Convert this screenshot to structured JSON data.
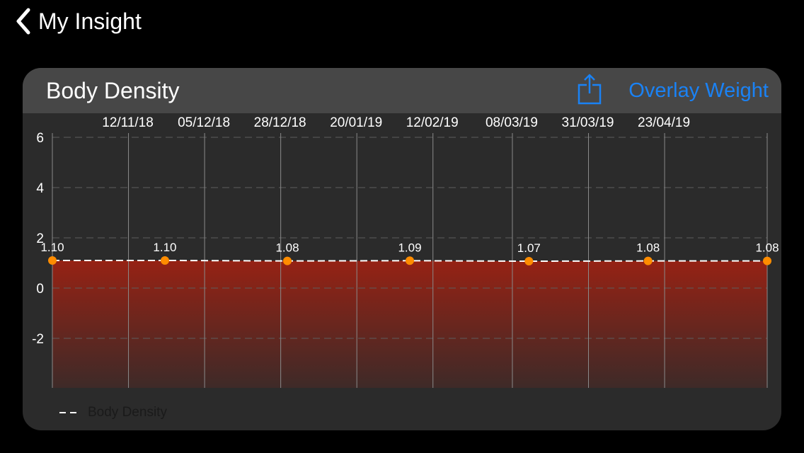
{
  "nav": {
    "back_label": "My Insight"
  },
  "card": {
    "title": "Body Density",
    "overlay_label": "Overlay Weight"
  },
  "colors": {
    "accent": "#1a82f5",
    "point": "#ff8c00",
    "area_top": "#962214",
    "area_bottom": "#3e2a28",
    "line": "#ffffff"
  },
  "chart_data": {
    "type": "area",
    "title": "Body Density",
    "x_tick_labels": [
      "12/11/18",
      "05/12/18",
      "28/12/18",
      "20/01/19",
      "12/02/19",
      "08/03/19",
      "31/03/19",
      "23/04/19"
    ],
    "y_ticks": [
      6,
      4,
      2,
      0,
      -2
    ],
    "ylim": [
      -4,
      6
    ],
    "series": [
      {
        "name": "Body Density",
        "x": [
          "2018-10-20",
          "2018-11-23",
          "2018-12-30",
          "2019-02-05",
          "2019-03-13",
          "2019-04-18",
          "2019-05-24"
        ],
        "values": [
          1.1,
          1.1,
          1.08,
          1.09,
          1.07,
          1.08,
          1.08
        ],
        "labels": [
          "1.10",
          "1.10",
          "1.08",
          "1.09",
          "1.07",
          "1.08",
          "1.08"
        ]
      }
    ],
    "grid": true,
    "legend": "bottom-left"
  }
}
